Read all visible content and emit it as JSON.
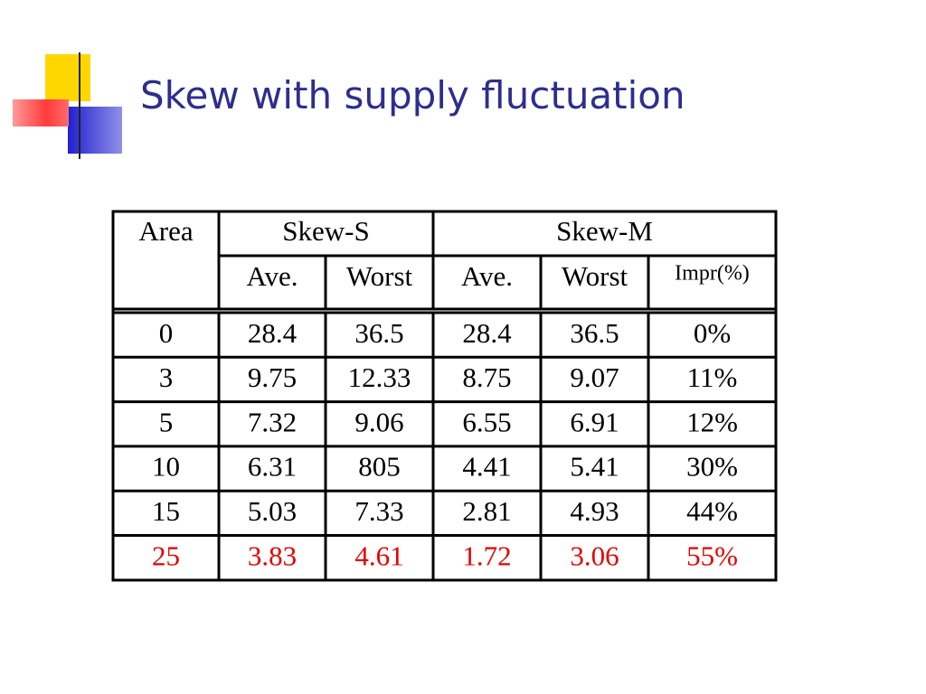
{
  "title": "Skew with supply fluctuation",
  "table": {
    "header": {
      "area": "Area",
      "groups": [
        "Skew-S",
        "Skew-M"
      ],
      "sub": [
        "Ave.",
        "Worst",
        "Ave.",
        "Worst",
        "Impr(%)"
      ]
    },
    "rows": [
      [
        "0",
        "28.4",
        "36.5",
        "28.4",
        "36.5",
        "0%"
      ],
      [
        "3",
        "9.75",
        "12.33",
        "8.75",
        "9.07",
        "11%"
      ],
      [
        "5",
        "7.32",
        "9.06",
        "6.55",
        "6.91",
        "12%"
      ],
      [
        "10",
        "6.31",
        "805",
        "4.41",
        "5.41",
        "30%"
      ],
      [
        "15",
        "5.03",
        "7.33",
        "2.81",
        "4.93",
        "44%"
      ],
      [
        "25",
        "3.83",
        "4.61",
        "1.72",
        "3.06",
        "55%"
      ]
    ]
  }
}
